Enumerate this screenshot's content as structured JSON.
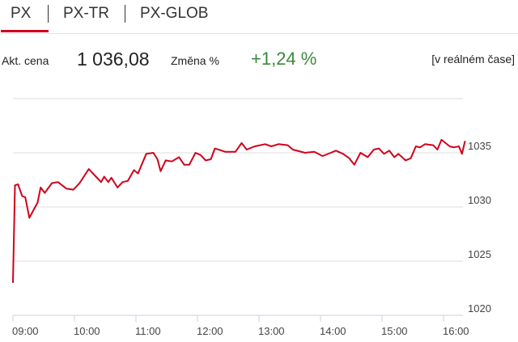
{
  "tabs": [
    {
      "label": "PX",
      "active": true
    },
    {
      "label": "PX-TR",
      "active": false
    },
    {
      "label": "PX-GLOB",
      "active": false
    }
  ],
  "info": {
    "price_label": "Akt. cena",
    "price": "1 036,08",
    "change_label": "Změna %",
    "change": "+1,24 %",
    "realtime": "[v reálném čase]"
  },
  "colors": {
    "accent": "#d0021b",
    "line": "#d0021b",
    "positive": "#3b8a3b",
    "grid": "#dddddd"
  },
  "chart_data": {
    "type": "line",
    "title": "",
    "xlabel": "",
    "ylabel": "",
    "ylim": [
      1020,
      1040
    ],
    "yticks": [
      1020,
      1025,
      1030,
      1035
    ],
    "xticks": [
      "09:00",
      "10:00",
      "11:00",
      "12:00",
      "13:00",
      "14:00",
      "15:00",
      "16:00"
    ],
    "xlim": [
      "09:00",
      "16:21"
    ],
    "grid": true,
    "y_axis_side": "right",
    "x": [
      "09:00",
      "09:02",
      "09:05",
      "09:09",
      "09:12",
      "09:16",
      "09:20",
      "09:24",
      "09:27",
      "09:31",
      "09:38",
      "09:44",
      "09:52",
      "09:59",
      "10:05",
      "10:14",
      "10:21",
      "10:26",
      "10:29",
      "10:33",
      "10:36",
      "10:42",
      "10:47",
      "10:52",
      "10:58",
      "11:02",
      "11:10",
      "11:17",
      "11:21",
      "11:24",
      "11:29",
      "11:35",
      "11:42",
      "11:47",
      "11:52",
      "11:58",
      "12:03",
      "12:08",
      "12:13",
      "12:17",
      "12:27",
      "12:37",
      "12:43",
      "12:48",
      "12:56",
      "13:06",
      "13:12",
      "13:19",
      "13:28",
      "13:33",
      "13:45",
      "13:54",
      "14:02",
      "14:10",
      "14:15",
      "14:22",
      "14:28",
      "14:33",
      "14:39",
      "14:46",
      "14:52",
      "14:57",
      "15:02",
      "15:07",
      "15:12",
      "15:16",
      "15:23",
      "15:28",
      "15:33",
      "15:37",
      "15:42",
      "15:50",
      "15:54",
      "15:58",
      "16:06",
      "16:10",
      "16:15",
      "16:18",
      "16:21"
    ],
    "values": [
      1023.0,
      1032.0,
      1032.1,
      1031.0,
      1030.9,
      1029.0,
      1029.7,
      1030.4,
      1031.8,
      1031.3,
      1032.2,
      1032.3,
      1031.7,
      1031.6,
      1032.2,
      1033.5,
      1032.8,
      1032.3,
      1032.8,
      1032.3,
      1032.7,
      1031.8,
      1032.3,
      1032.4,
      1033.4,
      1033.1,
      1034.9,
      1035.0,
      1034.4,
      1033.3,
      1034.3,
      1034.2,
      1034.6,
      1033.9,
      1033.9,
      1035.0,
      1034.8,
      1034.3,
      1034.4,
      1035.4,
      1035.1,
      1035.1,
      1035.9,
      1035.3,
      1035.6,
      1035.8,
      1035.6,
      1035.8,
      1035.7,
      1035.3,
      1035.0,
      1035.1,
      1034.7,
      1035.0,
      1035.2,
      1034.9,
      1034.5,
      1033.9,
      1035.0,
      1034.6,
      1035.3,
      1035.4,
      1034.9,
      1035.2,
      1034.6,
      1034.9,
      1034.3,
      1034.5,
      1035.6,
      1035.5,
      1035.8,
      1035.7,
      1035.3,
      1036.2,
      1035.6,
      1035.5,
      1035.6,
      1034.9,
      1036.1
    ]
  }
}
